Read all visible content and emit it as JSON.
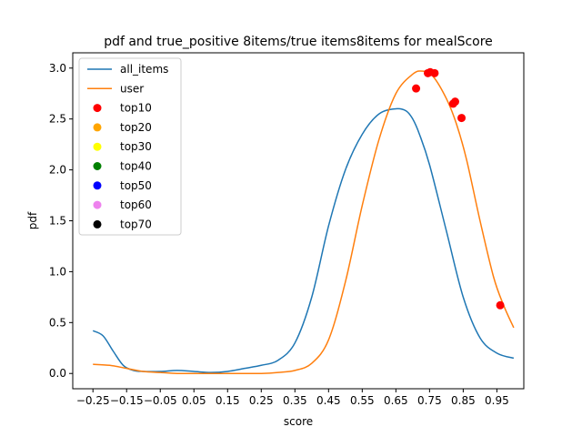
{
  "chart_data": {
    "type": "line",
    "title": "pdf and true_positive 8items/true items8items for mealScore",
    "xlabel": "score",
    "ylabel": "pdf",
    "xlim": [
      -0.31,
      1.03
    ],
    "ylim": [
      -0.15,
      3.15
    ],
    "x_ticks": [
      -0.25,
      -0.15,
      -0.05,
      0.05,
      0.15,
      0.25,
      0.35,
      0.45,
      0.55,
      0.65,
      0.75,
      0.85,
      0.95
    ],
    "x_tick_labels": [
      "−0.25",
      "−0.15",
      "−0.05",
      "0.05",
      "0.15",
      "0.25",
      "0.35",
      "0.45",
      "0.55",
      "0.65",
      "0.75",
      "0.85",
      "0.95"
    ],
    "y_ticks": [
      0.0,
      0.5,
      1.0,
      1.5,
      2.0,
      2.5,
      3.0
    ],
    "y_tick_labels": [
      "0.0",
      "0.5",
      "1.0",
      "1.5",
      "2.0",
      "2.5",
      "3.0"
    ],
    "grid": false,
    "legend_position": "top-left",
    "series": [
      {
        "name": "all_items",
        "kind": "line",
        "color": "#1f77b4",
        "x": [
          -0.25,
          -0.22,
          -0.19,
          -0.16,
          -0.13,
          -0.1,
          -0.05,
          0.0,
          0.05,
          0.1,
          0.15,
          0.2,
          0.25,
          0.3,
          0.35,
          0.4,
          0.45,
          0.5,
          0.55,
          0.6,
          0.65,
          0.68,
          0.7,
          0.72,
          0.75,
          0.8,
          0.85,
          0.9,
          0.95,
          1.0
        ],
        "y": [
          0.42,
          0.37,
          0.22,
          0.08,
          0.03,
          0.02,
          0.02,
          0.03,
          0.02,
          0.01,
          0.02,
          0.05,
          0.08,
          0.13,
          0.3,
          0.75,
          1.45,
          2.0,
          2.35,
          2.55,
          2.6,
          2.58,
          2.5,
          2.35,
          2.05,
          1.4,
          0.75,
          0.35,
          0.2,
          0.15
        ]
      },
      {
        "name": "user",
        "kind": "line",
        "color": "#ff7f0e",
        "x": [
          -0.25,
          -0.2,
          -0.15,
          -0.1,
          -0.05,
          0.0,
          0.05,
          0.1,
          0.15,
          0.2,
          0.25,
          0.3,
          0.35,
          0.4,
          0.45,
          0.5,
          0.55,
          0.6,
          0.65,
          0.7,
          0.73,
          0.76,
          0.8,
          0.83,
          0.86,
          0.9,
          0.94,
          0.97,
          1.0
        ],
        "y": [
          0.09,
          0.08,
          0.05,
          0.02,
          0.01,
          0.0,
          0.0,
          0.0,
          0.0,
          0.0,
          0.0,
          0.01,
          0.03,
          0.1,
          0.33,
          0.9,
          1.65,
          2.3,
          2.75,
          2.94,
          2.97,
          2.92,
          2.7,
          2.45,
          2.1,
          1.5,
          0.95,
          0.67,
          0.45
        ]
      },
      {
        "name": "top10",
        "kind": "scatter",
        "color": "#ff0000",
        "x": [
          0.71,
          0.745,
          0.752,
          0.765,
          0.82,
          0.826,
          0.845,
          0.96
        ],
        "y": [
          2.8,
          2.95,
          2.96,
          2.95,
          2.65,
          2.67,
          2.51,
          0.67
        ]
      },
      {
        "name": "top20",
        "kind": "scatter",
        "color": "#ffa500",
        "x": [],
        "y": []
      },
      {
        "name": "top30",
        "kind": "scatter",
        "color": "#ffff00",
        "x": [],
        "y": []
      },
      {
        "name": "top40",
        "kind": "scatter",
        "color": "#008000",
        "x": [],
        "y": []
      },
      {
        "name": "top50",
        "kind": "scatter",
        "color": "#0000ff",
        "x": [],
        "y": []
      },
      {
        "name": "top60",
        "kind": "scatter",
        "color": "#ee82ee",
        "x": [],
        "y": []
      },
      {
        "name": "top70",
        "kind": "scatter",
        "color": "#000000",
        "x": [],
        "y": []
      }
    ]
  }
}
